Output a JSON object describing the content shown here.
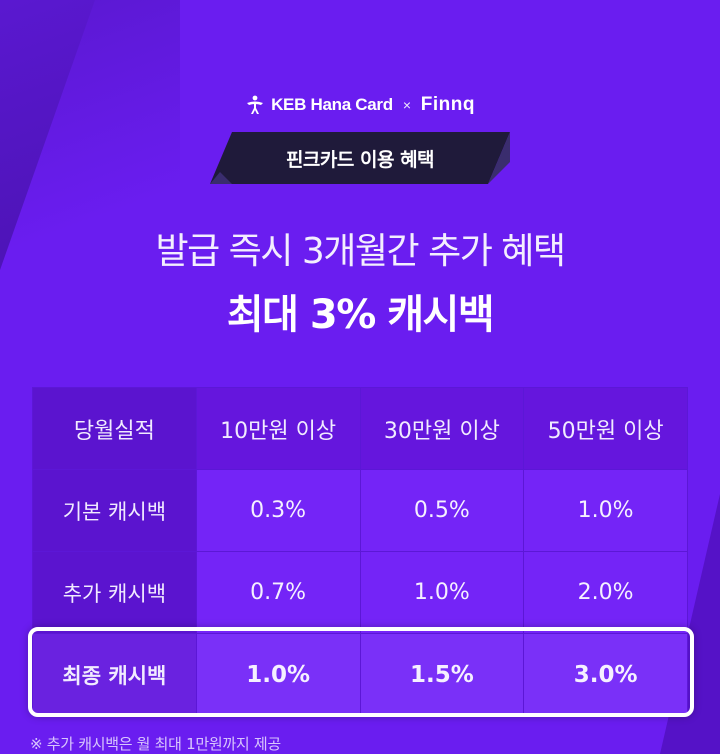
{
  "brand": {
    "partner1": "KEB Hana Card",
    "separator": "×",
    "partner2": "Finnq"
  },
  "ribbon": {
    "label": "핀크카드 이용 혜택"
  },
  "headline": {
    "line1": "발급 즉시 3개월간 추가 혜택",
    "line2": "최대 3% 캐시백"
  },
  "table": {
    "headers": [
      "당월실적",
      "10만원 이상",
      "30만원 이상",
      "50만원 이상"
    ],
    "rows": [
      {
        "label": "기본 캐시백",
        "values": [
          "0.3%",
          "0.5%",
          "1.0%"
        ]
      },
      {
        "label": "추가 캐시백",
        "values": [
          "0.7%",
          "1.0%",
          "2.0%"
        ]
      },
      {
        "label": "최종 캐시백",
        "values": [
          "1.0%",
          "1.5%",
          "3.0%"
        ]
      }
    ]
  },
  "footnote": "※ 추가 캐시백은 월 최대 1만원까지 제공",
  "colors": {
    "background": "#6a1df0",
    "ribbon": "#1f1a3a",
    "highlight": "#ffffff"
  }
}
